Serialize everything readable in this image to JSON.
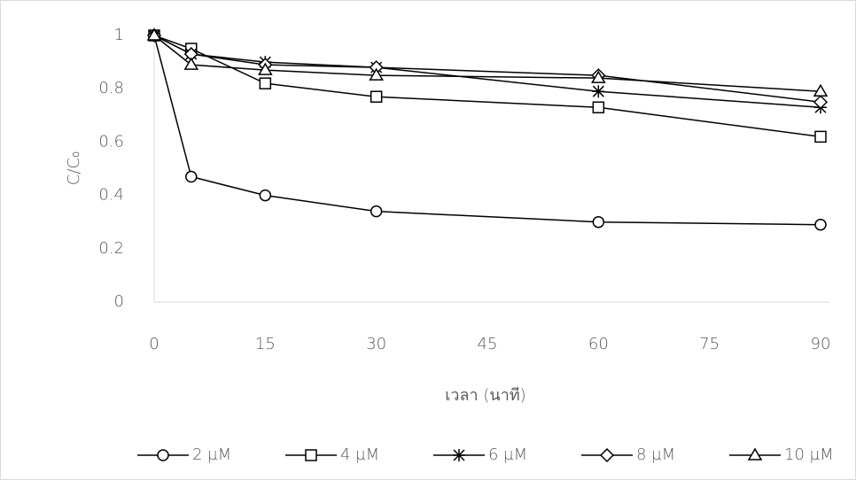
{
  "chart_data": {
    "type": "line",
    "xlabel": "เวลา (นาที)",
    "ylabel": "C/C₀",
    "x": [
      0,
      5,
      15,
      30,
      60,
      90
    ],
    "series": [
      {
        "name": "2 µM",
        "color": "#000000",
        "marker": "circle",
        "values": [
          1,
          0.47,
          0.4,
          0.34,
          0.3,
          0.29
        ]
      },
      {
        "name": "4 µM",
        "color": "#000000",
        "marker": "square",
        "values": [
          1,
          0.95,
          0.82,
          0.77,
          0.73,
          0.62
        ]
      },
      {
        "name": "6 µM",
        "color": "#000000",
        "marker": "star",
        "values": [
          1,
          0.93,
          0.9,
          0.88,
          0.79,
          0.73
        ]
      },
      {
        "name": "8 µM",
        "color": "#000000",
        "marker": "diamond",
        "values": [
          1,
          0.93,
          0.89,
          0.88,
          0.85,
          0.75
        ]
      },
      {
        "name": "10 µM",
        "color": "#000000",
        "marker": "triangle",
        "values": [
          1,
          0.89,
          0.87,
          0.85,
          0.84,
          0.79
        ]
      }
    ],
    "xlim": [
      0,
      90
    ],
    "xticks": [
      0,
      15,
      30,
      45,
      60,
      75,
      90
    ],
    "ylim": [
      0,
      1
    ],
    "yticks": [
      0,
      0.2,
      0.4,
      0.6,
      0.8,
      1
    ],
    "grid": false,
    "legend": "bottom"
  }
}
